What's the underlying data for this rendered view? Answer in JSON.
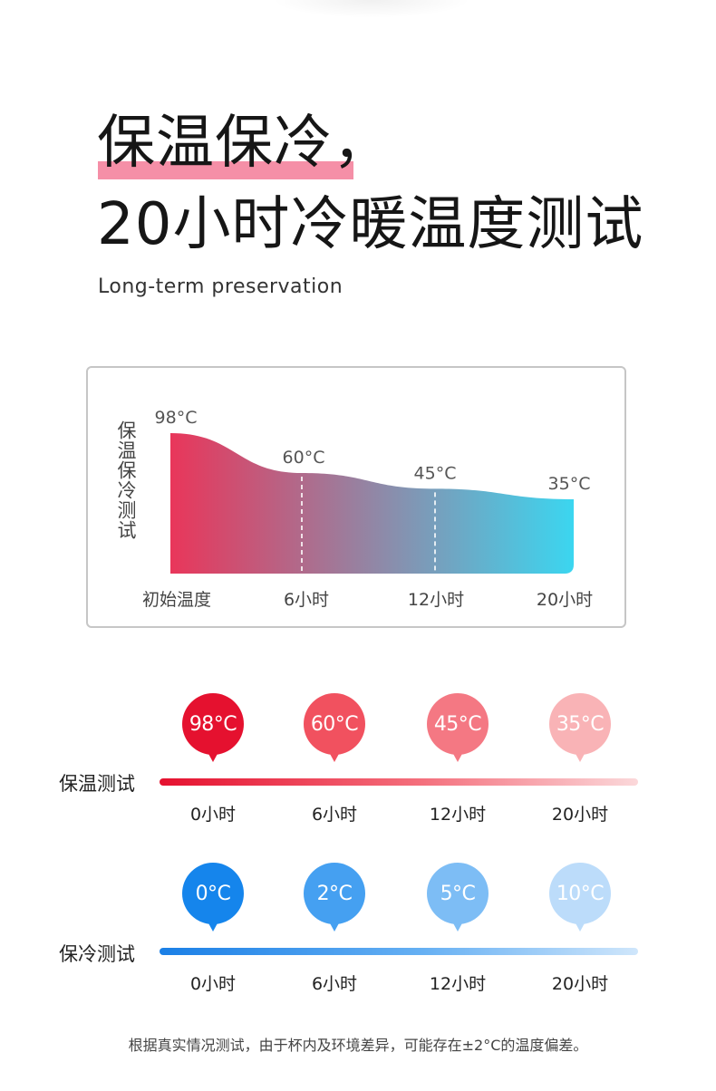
{
  "heading": {
    "line1": "保温保冷，",
    "line2": "20小时冷暖温度测试",
    "subtitle": "Long-term preservation",
    "highlight_color": "#f58fa7"
  },
  "chart_data": {
    "type": "area",
    "ylabel": "保温保冷测试",
    "categories": [
      "初始温度",
      "6小时",
      "12小时",
      "20小时"
    ],
    "x_hours": [
      0,
      6,
      12,
      20
    ],
    "values": [
      98,
      60,
      45,
      35
    ],
    "value_labels": [
      "98°C",
      "60°C",
      "45°C",
      "35°C"
    ],
    "gradient": [
      "#e9365a",
      "#3bd6f0"
    ],
    "grid": false
  },
  "hot_test": {
    "label": "保温测试",
    "points": [
      {
        "temp": "98°C",
        "time": "0小时",
        "color": "#e5112f"
      },
      {
        "temp": "60°C",
        "time": "6小时",
        "color": "#f1515f"
      },
      {
        "temp": "45°C",
        "time": "12小时",
        "color": "#f47883"
      },
      {
        "temp": "35°C",
        "time": "20小时",
        "color": "#f9b3b6"
      }
    ]
  },
  "cold_test": {
    "label": "保冷测试",
    "points": [
      {
        "temp": "0°C",
        "time": "0小时",
        "color": "#1585ec"
      },
      {
        "temp": "2°C",
        "time": "6小时",
        "color": "#45a0f1"
      },
      {
        "temp": "5°C",
        "time": "12小时",
        "color": "#7dbdf5"
      },
      {
        "temp": "10°C",
        "time": "20小时",
        "color": "#bcdcfa"
      }
    ]
  },
  "footnote": "根据真实情况测试，由于杯内及环境差异，可能存在±2°C的温度偏差。"
}
